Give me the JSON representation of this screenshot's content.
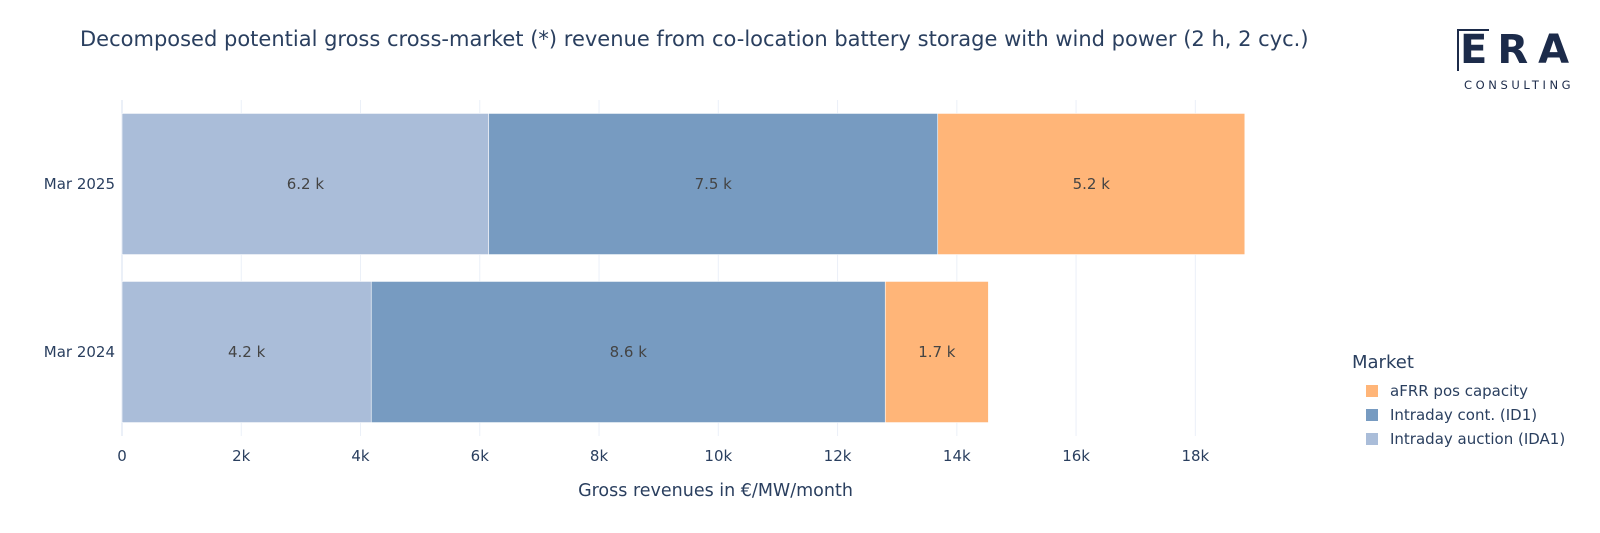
{
  "title": "Decomposed potential gross cross-market (*) revenue from co-location battery storage with wind power (2 h, 2 cyc.)",
  "logo": {
    "word": "ERA",
    "sub": "CONSULTING"
  },
  "colors": {
    "ida1": "#aabdd9",
    "id1": "#779bc1",
    "afrr": "#ffb578",
    "grid": "#ebf0f8",
    "text": "#2a3f5f"
  },
  "legend": {
    "title": "Market",
    "items": [
      {
        "label": "aFRR pos capacity",
        "color": "#ffb578"
      },
      {
        "label": "Intraday cont. (ID1)",
        "color": "#779bc1"
      },
      {
        "label": "Intraday auction (IDA1)",
        "color": "#aabdd9"
      }
    ]
  },
  "chart_data": {
    "type": "bar",
    "orientation": "horizontal",
    "stacked": true,
    "categories": [
      "Mar 2025",
      "Mar 2024"
    ],
    "series": [
      {
        "name": "Intraday auction (IDA1)",
        "values": [
          6150,
          4180
        ],
        "labels": [
          "6.2 k",
          "4.2 k"
        ],
        "color": "#aabdd9"
      },
      {
        "name": "Intraday cont. (ID1)",
        "values": [
          7530,
          8620
        ],
        "labels": [
          "7.5 k",
          "8.6 k"
        ],
        "color": "#779bc1"
      },
      {
        "name": "aFRR pos capacity",
        "values": [
          5150,
          1730
        ],
        "labels": [
          "5.2 k",
          "1.7 k"
        ],
        "color": "#ffb578"
      }
    ],
    "xlabel": "Gross revenues in €/MW/month",
    "ylabel": "",
    "xlim": [
      0,
      19500
    ],
    "xticks": [
      0,
      2000,
      4000,
      6000,
      8000,
      10000,
      12000,
      14000,
      16000,
      18000
    ],
    "xtick_labels": [
      "0",
      "2k",
      "4k",
      "6k",
      "8k",
      "10k",
      "12k",
      "14k",
      "16k",
      "18k"
    ],
    "grid": true,
    "legend_position": "right"
  }
}
